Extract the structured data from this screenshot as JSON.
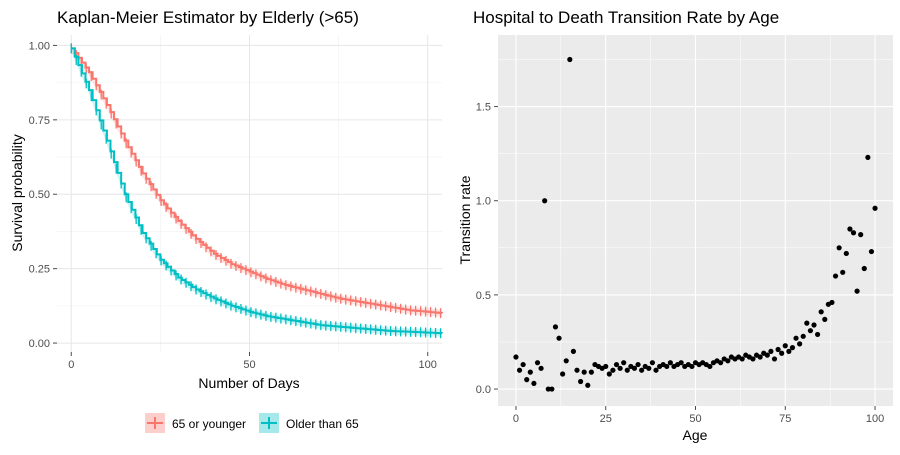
{
  "chart_data": [
    {
      "type": "line",
      "title": "Kaplan-Meier Estimator by Elderly (>65)",
      "xlabel": "Number of Days",
      "ylabel": "Survival probability",
      "xlim": [
        -4,
        104
      ],
      "ylim": [
        -0.03,
        1.035
      ],
      "x_ticks": [
        0,
        50,
        100
      ],
      "y_ticks": [
        0.0,
        0.25,
        0.5,
        0.75,
        1.0
      ],
      "y_tick_labels": [
        "0.00",
        "0.25",
        "0.50",
        "0.75",
        "1.00"
      ],
      "grid": true,
      "legend_position": "bottom",
      "series": [
        {
          "name": "65 or younger",
          "color": "#F8766D",
          "x": [
            0,
            5,
            10,
            15,
            20,
            25,
            30,
            35,
            40,
            45,
            50,
            55,
            60,
            65,
            70,
            75,
            80,
            85,
            90,
            95,
            100,
            104
          ],
          "values": [
            0.99,
            0.91,
            0.8,
            0.68,
            0.57,
            0.48,
            0.41,
            0.35,
            0.3,
            0.265,
            0.24,
            0.215,
            0.195,
            0.18,
            0.165,
            0.15,
            0.14,
            0.13,
            0.12,
            0.11,
            0.105,
            0.1
          ]
        },
        {
          "name": "Older than 65",
          "color": "#00BFC4",
          "x": [
            0,
            5,
            10,
            15,
            20,
            25,
            30,
            35,
            40,
            45,
            50,
            55,
            60,
            65,
            70,
            75,
            80,
            85,
            90,
            95,
            100,
            104
          ],
          "values": [
            0.99,
            0.85,
            0.68,
            0.5,
            0.37,
            0.28,
            0.22,
            0.18,
            0.15,
            0.125,
            0.105,
            0.09,
            0.08,
            0.07,
            0.06,
            0.055,
            0.05,
            0.045,
            0.04,
            0.038,
            0.035,
            0.033
          ]
        }
      ]
    },
    {
      "type": "scatter",
      "title": "Hospital to Death Transition Rate by Age",
      "xlabel": "Age",
      "ylabel": "Transition rate",
      "xlim": [
        -5,
        105
      ],
      "ylim": [
        -0.09,
        1.88
      ],
      "x_ticks": [
        0,
        25,
        50,
        75,
        100
      ],
      "y_ticks": [
        0.0,
        0.5,
        1.0,
        1.5
      ],
      "y_tick_labels": [
        "0.0",
        "0.5",
        "1.0",
        "1.5"
      ],
      "grid": true,
      "background": "#EBEBEB",
      "color": "#000000",
      "points": [
        [
          0,
          0.17
        ],
        [
          1,
          0.1
        ],
        [
          2,
          0.13
        ],
        [
          3,
          0.05
        ],
        [
          4,
          0.09
        ],
        [
          5,
          0.03
        ],
        [
          6,
          0.14
        ],
        [
          7,
          0.11
        ],
        [
          8,
          1.0
        ],
        [
          9,
          0.0
        ],
        [
          10,
          0.0
        ],
        [
          11,
          0.33
        ],
        [
          12,
          0.27
        ],
        [
          13,
          0.08
        ],
        [
          14,
          0.15
        ],
        [
          15,
          1.75
        ],
        [
          16,
          0.2
        ],
        [
          17,
          0.1
        ],
        [
          18,
          0.04
        ],
        [
          19,
          0.09
        ],
        [
          20,
          0.02
        ],
        [
          21,
          0.09
        ],
        [
          22,
          0.13
        ],
        [
          23,
          0.12
        ],
        [
          24,
          0.11
        ],
        [
          25,
          0.12
        ],
        [
          26,
          0.08
        ],
        [
          27,
          0.1
        ],
        [
          28,
          0.13
        ],
        [
          29,
          0.11
        ],
        [
          30,
          0.14
        ],
        [
          31,
          0.1
        ],
        [
          32,
          0.12
        ],
        [
          33,
          0.11
        ],
        [
          34,
          0.13
        ],
        [
          35,
          0.1
        ],
        [
          36,
          0.12
        ],
        [
          37,
          0.11
        ],
        [
          38,
          0.14
        ],
        [
          39,
          0.1
        ],
        [
          40,
          0.12
        ],
        [
          41,
          0.13
        ],
        [
          42,
          0.12
        ],
        [
          43,
          0.14
        ],
        [
          44,
          0.12
        ],
        [
          45,
          0.13
        ],
        [
          46,
          0.14
        ],
        [
          47,
          0.12
        ],
        [
          48,
          0.13
        ],
        [
          49,
          0.12
        ],
        [
          50,
          0.14
        ],
        [
          51,
          0.13
        ],
        [
          52,
          0.14
        ],
        [
          53,
          0.13
        ],
        [
          54,
          0.12
        ],
        [
          55,
          0.14
        ],
        [
          56,
          0.15
        ],
        [
          57,
          0.14
        ],
        [
          58,
          0.16
        ],
        [
          59,
          0.15
        ],
        [
          60,
          0.17
        ],
        [
          61,
          0.16
        ],
        [
          62,
          0.17
        ],
        [
          63,
          0.16
        ],
        [
          64,
          0.18
        ],
        [
          65,
          0.17
        ],
        [
          66,
          0.16
        ],
        [
          67,
          0.18
        ],
        [
          68,
          0.17
        ],
        [
          69,
          0.19
        ],
        [
          70,
          0.18
        ],
        [
          71,
          0.2
        ],
        [
          72,
          0.16
        ],
        [
          73,
          0.21
        ],
        [
          74,
          0.19
        ],
        [
          75,
          0.23
        ],
        [
          76,
          0.2
        ],
        [
          77,
          0.22
        ],
        [
          78,
          0.27
        ],
        [
          79,
          0.24
        ],
        [
          80,
          0.28
        ],
        [
          81,
          0.35
        ],
        [
          82,
          0.31
        ],
        [
          83,
          0.34
        ],
        [
          84,
          0.29
        ],
        [
          85,
          0.41
        ],
        [
          86,
          0.37
        ],
        [
          87,
          0.45
        ],
        [
          88,
          0.46
        ],
        [
          89,
          0.6
        ],
        [
          90,
          0.75
        ],
        [
          91,
          0.62
        ],
        [
          92,
          0.72
        ],
        [
          93,
          0.85
        ],
        [
          94,
          0.83
        ],
        [
          95,
          0.52
        ],
        [
          96,
          0.82
        ],
        [
          97,
          0.64
        ],
        [
          98,
          1.23
        ],
        [
          99,
          0.73
        ],
        [
          100,
          0.96
        ]
      ]
    }
  ]
}
